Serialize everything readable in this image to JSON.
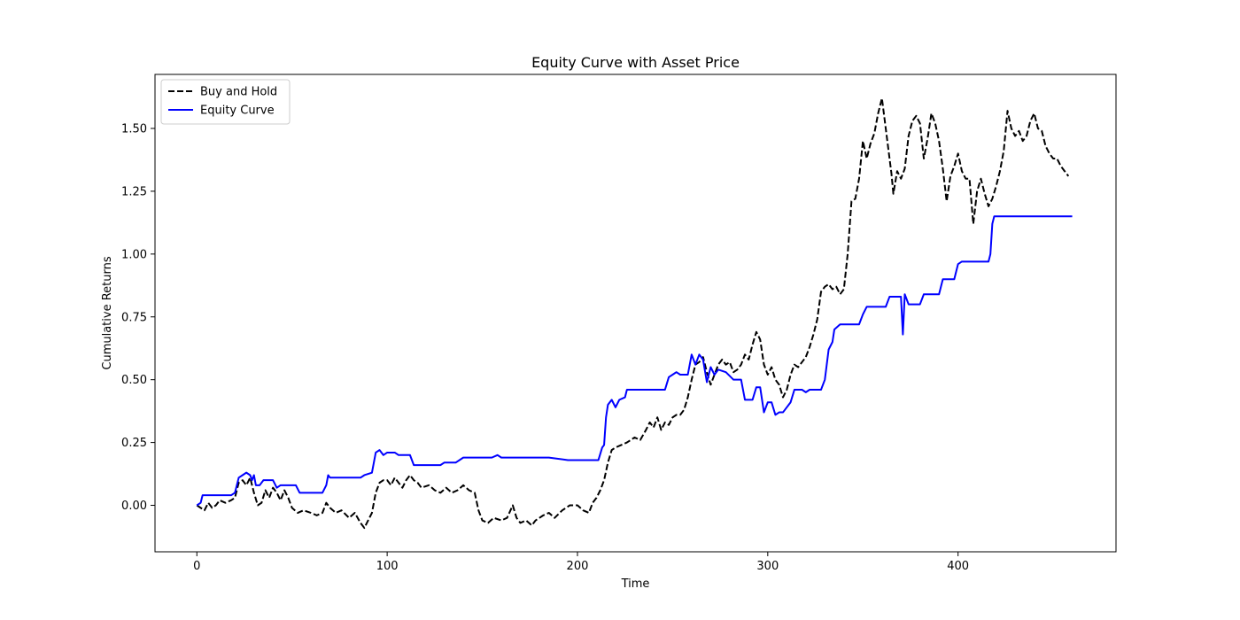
{
  "chart_data": {
    "type": "line",
    "title": "Equity Curve with Asset Price",
    "xlabel": "Time",
    "ylabel": "Cumulative Returns",
    "xlim": [
      -22,
      483
    ],
    "ylim": [
      -0.185,
      1.715
    ],
    "xticks": [
      0,
      100,
      200,
      300,
      400
    ],
    "xtick_labels": [
      "0",
      "100",
      "200",
      "300",
      "400"
    ],
    "yticks": [
      0.0,
      0.25,
      0.5,
      0.75,
      1.0,
      1.25,
      1.5
    ],
    "ytick_labels": [
      "0.00",
      "0.25",
      "0.50",
      "0.75",
      "1.00",
      "1.25",
      "1.50"
    ],
    "grid": false,
    "legend_position": "top-left",
    "series": [
      {
        "name": "Buy and Hold",
        "color": "#000000",
        "style": "dashed",
        "points": [
          [
            0,
            0.0
          ],
          [
            2,
            -0.01
          ],
          [
            4,
            -0.02
          ],
          [
            6,
            0.01
          ],
          [
            8,
            -0.01
          ],
          [
            10,
            0.0
          ],
          [
            12,
            0.02
          ],
          [
            15,
            0.01
          ],
          [
            18,
            0.02
          ],
          [
            20,
            0.03
          ],
          [
            22,
            0.09
          ],
          [
            24,
            0.1
          ],
          [
            26,
            0.08
          ],
          [
            28,
            0.11
          ],
          [
            30,
            0.05
          ],
          [
            32,
            0.0
          ],
          [
            34,
            0.01
          ],
          [
            36,
            0.06
          ],
          [
            38,
            0.03
          ],
          [
            40,
            0.07
          ],
          [
            42,
            0.05
          ],
          [
            44,
            0.02
          ],
          [
            46,
            0.06
          ],
          [
            48,
            0.03
          ],
          [
            50,
            -0.01
          ],
          [
            53,
            -0.03
          ],
          [
            56,
            -0.02
          ],
          [
            60,
            -0.03
          ],
          [
            63,
            -0.04
          ],
          [
            66,
            -0.03
          ],
          [
            68,
            0.01
          ],
          [
            70,
            -0.01
          ],
          [
            73,
            -0.03
          ],
          [
            76,
            -0.02
          ],
          [
            80,
            -0.05
          ],
          [
            83,
            -0.03
          ],
          [
            86,
            -0.07
          ],
          [
            88,
            -0.09
          ],
          [
            90,
            -0.06
          ],
          [
            92,
            -0.03
          ],
          [
            94,
            0.05
          ],
          [
            96,
            0.09
          ],
          [
            98,
            0.1
          ],
          [
            100,
            0.1
          ],
          [
            102,
            0.08
          ],
          [
            104,
            0.11
          ],
          [
            106,
            0.09
          ],
          [
            108,
            0.07
          ],
          [
            110,
            0.1
          ],
          [
            112,
            0.12
          ],
          [
            114,
            0.1
          ],
          [
            116,
            0.09
          ],
          [
            118,
            0.07
          ],
          [
            122,
            0.08
          ],
          [
            125,
            0.06
          ],
          [
            128,
            0.05
          ],
          [
            131,
            0.07
          ],
          [
            134,
            0.05
          ],
          [
            137,
            0.06
          ],
          [
            140,
            0.08
          ],
          [
            143,
            0.06
          ],
          [
            146,
            0.05
          ],
          [
            148,
            -0.02
          ],
          [
            150,
            -0.06
          ],
          [
            153,
            -0.07
          ],
          [
            156,
            -0.05
          ],
          [
            160,
            -0.06
          ],
          [
            163,
            -0.05
          ],
          [
            166,
            0.0
          ],
          [
            168,
            -0.05
          ],
          [
            170,
            -0.07
          ],
          [
            173,
            -0.06
          ],
          [
            176,
            -0.08
          ],
          [
            178,
            -0.06
          ],
          [
            182,
            -0.04
          ],
          [
            185,
            -0.03
          ],
          [
            188,
            -0.05
          ],
          [
            192,
            -0.02
          ],
          [
            196,
            0.0
          ],
          [
            200,
            0.0
          ],
          [
            203,
            -0.02
          ],
          [
            206,
            -0.03
          ],
          [
            208,
            0.01
          ],
          [
            210,
            0.03
          ],
          [
            212,
            0.06
          ],
          [
            214,
            0.1
          ],
          [
            216,
            0.17
          ],
          [
            218,
            0.22
          ],
          [
            220,
            0.23
          ],
          [
            223,
            0.24
          ],
          [
            226,
            0.25
          ],
          [
            230,
            0.27
          ],
          [
            233,
            0.26
          ],
          [
            236,
            0.3
          ],
          [
            238,
            0.33
          ],
          [
            240,
            0.31
          ],
          [
            242,
            0.35
          ],
          [
            244,
            0.3
          ],
          [
            246,
            0.33
          ],
          [
            248,
            0.32
          ],
          [
            250,
            0.35
          ],
          [
            252,
            0.36
          ],
          [
            254,
            0.36
          ],
          [
            256,
            0.38
          ],
          [
            258,
            0.43
          ],
          [
            260,
            0.5
          ],
          [
            262,
            0.56
          ],
          [
            264,
            0.57
          ],
          [
            266,
            0.59
          ],
          [
            268,
            0.53
          ],
          [
            270,
            0.48
          ],
          [
            272,
            0.52
          ],
          [
            274,
            0.56
          ],
          [
            276,
            0.58
          ],
          [
            278,
            0.56
          ],
          [
            280,
            0.57
          ],
          [
            282,
            0.53
          ],
          [
            284,
            0.54
          ],
          [
            286,
            0.56
          ],
          [
            288,
            0.6
          ],
          [
            290,
            0.58
          ],
          [
            292,
            0.64
          ],
          [
            294,
            0.69
          ],
          [
            296,
            0.66
          ],
          [
            298,
            0.56
          ],
          [
            300,
            0.52
          ],
          [
            302,
            0.55
          ],
          [
            304,
            0.5
          ],
          [
            306,
            0.48
          ],
          [
            308,
            0.43
          ],
          [
            310,
            0.46
          ],
          [
            312,
            0.52
          ],
          [
            314,
            0.56
          ],
          [
            316,
            0.55
          ],
          [
            318,
            0.57
          ],
          [
            320,
            0.59
          ],
          [
            322,
            0.63
          ],
          [
            324,
            0.68
          ],
          [
            326,
            0.74
          ],
          [
            328,
            0.85
          ],
          [
            330,
            0.87
          ],
          [
            332,
            0.88
          ],
          [
            334,
            0.86
          ],
          [
            336,
            0.87
          ],
          [
            338,
            0.84
          ],
          [
            340,
            0.86
          ],
          [
            342,
            1.0
          ],
          [
            344,
            1.21
          ],
          [
            346,
            1.22
          ],
          [
            348,
            1.3
          ],
          [
            350,
            1.45
          ],
          [
            352,
            1.38
          ],
          [
            354,
            1.44
          ],
          [
            356,
            1.48
          ],
          [
            358,
            1.56
          ],
          [
            360,
            1.62
          ],
          [
            362,
            1.5
          ],
          [
            364,
            1.38
          ],
          [
            365,
            1.32
          ],
          [
            366,
            1.24
          ],
          [
            368,
            1.33
          ],
          [
            370,
            1.3
          ],
          [
            372,
            1.34
          ],
          [
            374,
            1.47
          ],
          [
            376,
            1.53
          ],
          [
            378,
            1.55
          ],
          [
            380,
            1.52
          ],
          [
            382,
            1.38
          ],
          [
            384,
            1.46
          ],
          [
            386,
            1.56
          ],
          [
            388,
            1.52
          ],
          [
            390,
            1.45
          ],
          [
            392,
            1.34
          ],
          [
            394,
            1.21
          ],
          [
            396,
            1.31
          ],
          [
            398,
            1.35
          ],
          [
            400,
            1.4
          ],
          [
            402,
            1.33
          ],
          [
            404,
            1.3
          ],
          [
            406,
            1.3
          ],
          [
            408,
            1.12
          ],
          [
            410,
            1.25
          ],
          [
            412,
            1.3
          ],
          [
            414,
            1.24
          ],
          [
            416,
            1.19
          ],
          [
            418,
            1.22
          ],
          [
            420,
            1.27
          ],
          [
            422,
            1.33
          ],
          [
            424,
            1.41
          ],
          [
            426,
            1.57
          ],
          [
            428,
            1.5
          ],
          [
            430,
            1.47
          ],
          [
            432,
            1.49
          ],
          [
            434,
            1.45
          ],
          [
            436,
            1.47
          ],
          [
            438,
            1.53
          ],
          [
            440,
            1.56
          ],
          [
            442,
            1.5
          ],
          [
            444,
            1.49
          ],
          [
            446,
            1.43
          ],
          [
            448,
            1.4
          ],
          [
            450,
            1.38
          ],
          [
            452,
            1.38
          ],
          [
            454,
            1.35
          ],
          [
            456,
            1.33
          ],
          [
            458,
            1.31
          ]
        ]
      },
      {
        "name": "Equity Curve",
        "color": "#0000ff",
        "style": "solid",
        "points": [
          [
            0,
            0.0
          ],
          [
            2,
            0.01
          ],
          [
            3,
            0.04
          ],
          [
            8,
            0.04
          ],
          [
            12,
            0.04
          ],
          [
            18,
            0.04
          ],
          [
            20,
            0.05
          ],
          [
            22,
            0.11
          ],
          [
            24,
            0.12
          ],
          [
            26,
            0.13
          ],
          [
            28,
            0.12
          ],
          [
            29,
            0.1
          ],
          [
            30,
            0.12
          ],
          [
            31,
            0.08
          ],
          [
            33,
            0.08
          ],
          [
            35,
            0.1
          ],
          [
            40,
            0.1
          ],
          [
            42,
            0.07
          ],
          [
            44,
            0.08
          ],
          [
            52,
            0.08
          ],
          [
            54,
            0.05
          ],
          [
            66,
            0.05
          ],
          [
            68,
            0.08
          ],
          [
            69,
            0.12
          ],
          [
            70,
            0.11
          ],
          [
            86,
            0.11
          ],
          [
            88,
            0.12
          ],
          [
            92,
            0.13
          ],
          [
            94,
            0.21
          ],
          [
            96,
            0.22
          ],
          [
            98,
            0.2
          ],
          [
            100,
            0.21
          ],
          [
            104,
            0.21
          ],
          [
            106,
            0.2
          ],
          [
            112,
            0.2
          ],
          [
            114,
            0.16
          ],
          [
            124,
            0.16
          ],
          [
            128,
            0.16
          ],
          [
            130,
            0.17
          ],
          [
            136,
            0.17
          ],
          [
            140,
            0.19
          ],
          [
            155,
            0.19
          ],
          [
            158,
            0.2
          ],
          [
            160,
            0.19
          ],
          [
            185,
            0.19
          ],
          [
            195,
            0.18
          ],
          [
            211,
            0.18
          ],
          [
            213,
            0.23
          ],
          [
            214,
            0.24
          ],
          [
            215,
            0.35
          ],
          [
            216,
            0.4
          ],
          [
            218,
            0.42
          ],
          [
            220,
            0.39
          ],
          [
            222,
            0.42
          ],
          [
            225,
            0.43
          ],
          [
            226,
            0.46
          ],
          [
            246,
            0.46
          ],
          [
            248,
            0.51
          ],
          [
            252,
            0.53
          ],
          [
            254,
            0.52
          ],
          [
            258,
            0.52
          ],
          [
            260,
            0.6
          ],
          [
            262,
            0.56
          ],
          [
            264,
            0.6
          ],
          [
            266,
            0.58
          ],
          [
            268,
            0.49
          ],
          [
            270,
            0.55
          ],
          [
            272,
            0.52
          ],
          [
            274,
            0.54
          ],
          [
            278,
            0.53
          ],
          [
            282,
            0.5
          ],
          [
            286,
            0.5
          ],
          [
            288,
            0.42
          ],
          [
            292,
            0.42
          ],
          [
            294,
            0.47
          ],
          [
            296,
            0.47
          ],
          [
            298,
            0.37
          ],
          [
            300,
            0.41
          ],
          [
            302,
            0.41
          ],
          [
            304,
            0.36
          ],
          [
            306,
            0.37
          ],
          [
            308,
            0.37
          ],
          [
            312,
            0.41
          ],
          [
            314,
            0.46
          ],
          [
            318,
            0.46
          ],
          [
            320,
            0.45
          ],
          [
            322,
            0.46
          ],
          [
            328,
            0.46
          ],
          [
            330,
            0.5
          ],
          [
            332,
            0.62
          ],
          [
            334,
            0.65
          ],
          [
            335,
            0.7
          ],
          [
            338,
            0.72
          ],
          [
            348,
            0.72
          ],
          [
            350,
            0.76
          ],
          [
            352,
            0.79
          ],
          [
            362,
            0.79
          ],
          [
            364,
            0.83
          ],
          [
            370,
            0.83
          ],
          [
            371,
            0.68
          ],
          [
            372,
            0.84
          ],
          [
            374,
            0.8
          ],
          [
            380,
            0.8
          ],
          [
            382,
            0.84
          ],
          [
            390,
            0.84
          ],
          [
            392,
            0.9
          ],
          [
            398,
            0.9
          ],
          [
            400,
            0.96
          ],
          [
            402,
            0.97
          ],
          [
            416,
            0.97
          ],
          [
            417,
            1.0
          ],
          [
            418,
            1.12
          ],
          [
            419,
            1.15
          ],
          [
            460,
            1.15
          ]
        ]
      }
    ]
  }
}
